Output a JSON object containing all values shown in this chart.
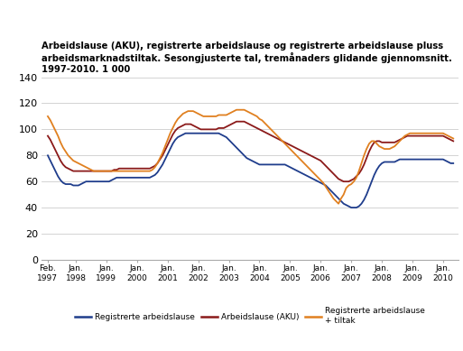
{
  "title_line1": "Arbeidslause (AKU), registrerte arbeidslause og registrerte arbeidslause pluss",
  "title_line2": "arbeidsmarknadstiltak. Sesongjusterte tal, tremånaders glidande gjennomsnitt.",
  "title_line3": "1997-2010. 1 000",
  "ylim": [
    0,
    140
  ],
  "yticks": [
    0,
    20,
    40,
    60,
    80,
    100,
    120,
    140
  ],
  "colors": {
    "registrerte": "#1f3d8c",
    "aku": "#8b1a1a",
    "tiltak": "#e08020"
  },
  "registrerte": [
    80,
    76,
    72,
    68,
    64,
    61,
    59,
    58,
    58,
    58,
    57,
    57,
    57,
    58,
    59,
    60,
    60,
    60,
    60,
    60,
    60,
    60,
    60,
    60,
    60,
    61,
    62,
    63,
    63,
    63,
    63,
    63,
    63,
    63,
    63,
    63,
    63,
    63,
    63,
    63,
    63,
    64,
    65,
    67,
    70,
    73,
    77,
    81,
    85,
    89,
    92,
    94,
    95,
    96,
    97,
    97,
    97,
    97,
    97,
    97,
    97,
    97,
    97,
    97,
    97,
    97,
    97,
    97,
    96,
    95,
    94,
    92,
    90,
    88,
    86,
    84,
    82,
    80,
    78,
    77,
    76,
    75,
    74,
    73,
    73,
    73,
    73,
    73,
    73,
    73,
    73,
    73,
    73,
    73,
    72,
    71,
    70,
    69,
    68,
    67,
    66,
    65,
    64,
    63,
    62,
    61,
    60,
    59,
    58,
    57,
    55,
    53,
    51,
    49,
    47,
    45,
    43,
    42,
    41,
    40,
    40,
    40,
    41,
    43,
    46,
    50,
    55,
    60,
    65,
    69,
    72,
    74,
    75,
    75,
    75,
    75,
    75,
    76,
    77,
    77,
    77,
    77,
    77,
    77,
    77,
    77,
    77,
    77,
    77,
    77,
    77,
    77,
    77,
    77,
    77,
    77,
    76,
    75,
    74,
    74
  ],
  "aku": [
    95,
    92,
    88,
    84,
    80,
    76,
    73,
    71,
    70,
    69,
    68,
    68,
    68,
    68,
    68,
    68,
    68,
    68,
    68,
    68,
    68,
    68,
    68,
    68,
    68,
    68,
    69,
    69,
    70,
    70,
    70,
    70,
    70,
    70,
    70,
    70,
    70,
    70,
    70,
    70,
    70,
    71,
    72,
    74,
    77,
    80,
    84,
    88,
    92,
    96,
    99,
    101,
    102,
    103,
    104,
    104,
    104,
    103,
    102,
    101,
    100,
    100,
    100,
    100,
    100,
    100,
    100,
    101,
    101,
    101,
    102,
    103,
    104,
    105,
    106,
    106,
    106,
    106,
    105,
    104,
    103,
    102,
    101,
    100,
    99,
    98,
    97,
    96,
    95,
    94,
    93,
    92,
    91,
    90,
    89,
    88,
    87,
    86,
    85,
    84,
    83,
    82,
    81,
    80,
    79,
    78,
    77,
    76,
    74,
    72,
    70,
    68,
    66,
    64,
    62,
    61,
    60,
    60,
    60,
    61,
    62,
    64,
    66,
    69,
    73,
    78,
    83,
    87,
    90,
    91,
    91,
    90,
    90,
    90,
    90,
    90,
    90,
    91,
    92,
    93,
    94,
    95,
    95,
    95,
    95,
    95,
    95,
    95,
    95,
    95,
    95,
    95,
    95,
    95,
    95,
    95,
    94,
    93,
    92,
    91
  ],
  "tiltak": [
    110,
    107,
    103,
    99,
    95,
    90,
    86,
    83,
    80,
    78,
    76,
    75,
    74,
    73,
    72,
    71,
    70,
    69,
    68,
    68,
    68,
    68,
    68,
    68,
    68,
    68,
    68,
    68,
    68,
    68,
    68,
    68,
    68,
    68,
    68,
    68,
    68,
    68,
    68,
    68,
    68,
    69,
    71,
    74,
    78,
    82,
    87,
    92,
    97,
    101,
    105,
    108,
    110,
    112,
    113,
    114,
    114,
    114,
    113,
    112,
    111,
    110,
    110,
    110,
    110,
    110,
    110,
    111,
    111,
    111,
    111,
    112,
    113,
    114,
    115,
    115,
    115,
    115,
    114,
    113,
    112,
    111,
    110,
    108,
    107,
    105,
    103,
    101,
    99,
    97,
    95,
    93,
    91,
    89,
    87,
    85,
    83,
    81,
    79,
    77,
    75,
    73,
    71,
    69,
    67,
    65,
    63,
    61,
    59,
    56,
    53,
    50,
    47,
    45,
    43,
    47,
    50,
    55,
    57,
    58,
    60,
    63,
    68,
    74,
    80,
    85,
    89,
    91,
    91,
    89,
    87,
    86,
    85,
    85,
    85,
    86,
    87,
    89,
    91,
    93,
    95,
    96,
    97,
    97,
    97,
    97,
    97,
    97,
    97,
    97,
    97,
    97,
    97,
    97,
    97,
    97,
    96,
    95,
    94,
    93
  ]
}
